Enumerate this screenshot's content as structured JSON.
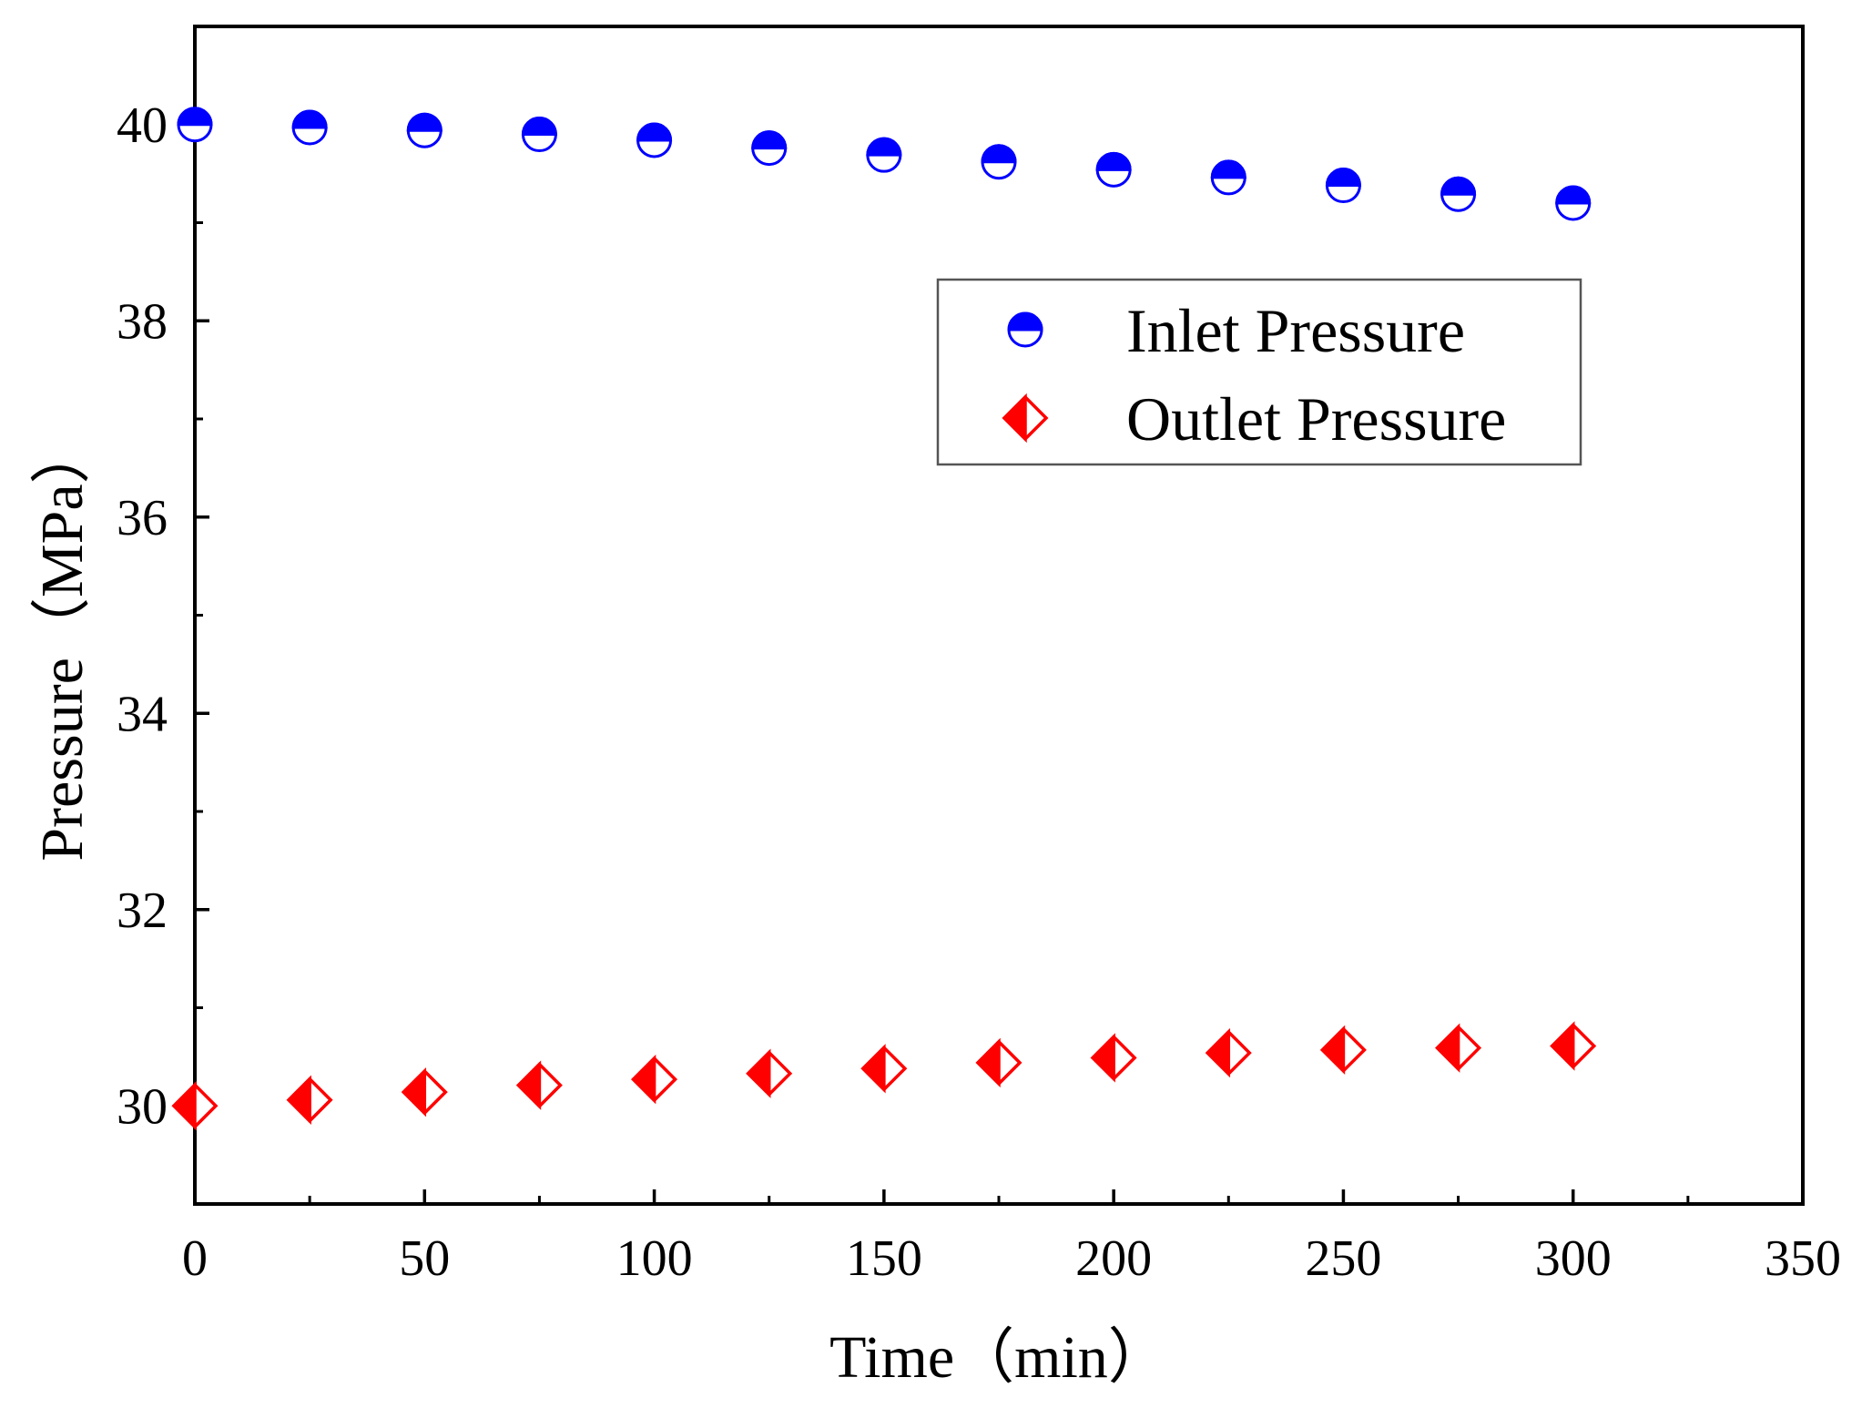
{
  "chart_data": {
    "type": "scatter",
    "title": "",
    "xlabel": "Time（min）",
    "ylabel": "Pressure（MPa）",
    "xlim": [
      0,
      350
    ],
    "ylim": [
      29,
      41
    ],
    "x_ticks": [
      0,
      50,
      100,
      150,
      200,
      250,
      300,
      350
    ],
    "x_minor_ticks": [
      25,
      75,
      125,
      175,
      225,
      275,
      325
    ],
    "y_ticks": [
      30,
      32,
      34,
      36,
      38,
      40
    ],
    "y_minor_ticks": [
      29,
      31,
      33,
      35,
      37,
      39,
      41
    ],
    "grid": false,
    "legend_position": "top-right",
    "series": [
      {
        "name": "Inlet Pressure",
        "marker": "half-filled-circle",
        "color": "#0000ff",
        "x": [
          0,
          25,
          50,
          75,
          100,
          125,
          150,
          175,
          200,
          225,
          250,
          275,
          300
        ],
        "values": [
          40.0,
          39.97,
          39.94,
          39.9,
          39.84,
          39.76,
          39.69,
          39.62,
          39.54,
          39.46,
          39.38,
          39.29,
          39.2
        ]
      },
      {
        "name": "Outlet Pressure",
        "marker": "half-filled-diamond",
        "color": "#ff0000",
        "x": [
          0,
          25,
          50,
          75,
          100,
          125,
          150,
          175,
          200,
          225,
          250,
          275,
          300
        ],
        "values": [
          30.0,
          30.06,
          30.14,
          30.21,
          30.27,
          30.33,
          30.38,
          30.44,
          30.49,
          30.54,
          30.57,
          30.59,
          30.61
        ]
      }
    ]
  }
}
